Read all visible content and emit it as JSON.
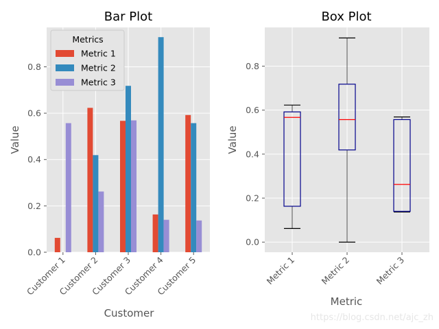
{
  "chart_data": [
    {
      "type": "bar",
      "title": "Bar Plot",
      "xlabel": "Customer",
      "ylabel": "Value",
      "ylim": [
        0,
        0.97
      ],
      "yticks": [
        "0.0",
        "0.2",
        "0.4",
        "0.6",
        "0.8"
      ],
      "categories": [
        "Customer 1",
        "Customer 2",
        "Customer 3",
        "Customer 4",
        "Customer 5"
      ],
      "legend": {
        "title": "Metrics",
        "position": "top-left"
      },
      "series": [
        {
          "name": "Metric 1",
          "color": "#e24a33",
          "values": [
            0.062,
            0.623,
            0.567,
            0.163,
            0.592
          ]
        },
        {
          "name": "Metric 2",
          "color": "#348abd",
          "values": [
            0.0,
            0.419,
            0.718,
            0.928,
            0.557
          ]
        },
        {
          "name": "Metric 3",
          "color": "#988ed5",
          "values": [
            0.557,
            0.262,
            0.569,
            0.14,
            0.137
          ]
        }
      ]
    },
    {
      "type": "box",
      "title": "Box Plot",
      "xlabel": "Metric",
      "ylabel": "Value",
      "ylim": [
        -0.046,
        0.976
      ],
      "yticks": [
        "0.0",
        "0.2",
        "0.4",
        "0.6",
        "0.8"
      ],
      "categories": [
        "Metric 1",
        "Metric 2",
        "Metric 3"
      ],
      "box_color": "#00008b",
      "median_color": "#ff0000",
      "whisker_color": "#555555",
      "boxes": [
        {
          "label": "Metric 1",
          "min": 0.062,
          "q1": 0.163,
          "median": 0.567,
          "q3": 0.592,
          "max": 0.623
        },
        {
          "label": "Metric 2",
          "min": 0.0,
          "q1": 0.419,
          "median": 0.557,
          "q3": 0.718,
          "max": 0.928
        },
        {
          "label": "Metric 3",
          "min": 0.137,
          "q1": 0.14,
          "median": 0.262,
          "q3": 0.557,
          "max": 0.569
        }
      ]
    }
  ],
  "watermark": "https://blog.csdn.net/ajc_zh"
}
